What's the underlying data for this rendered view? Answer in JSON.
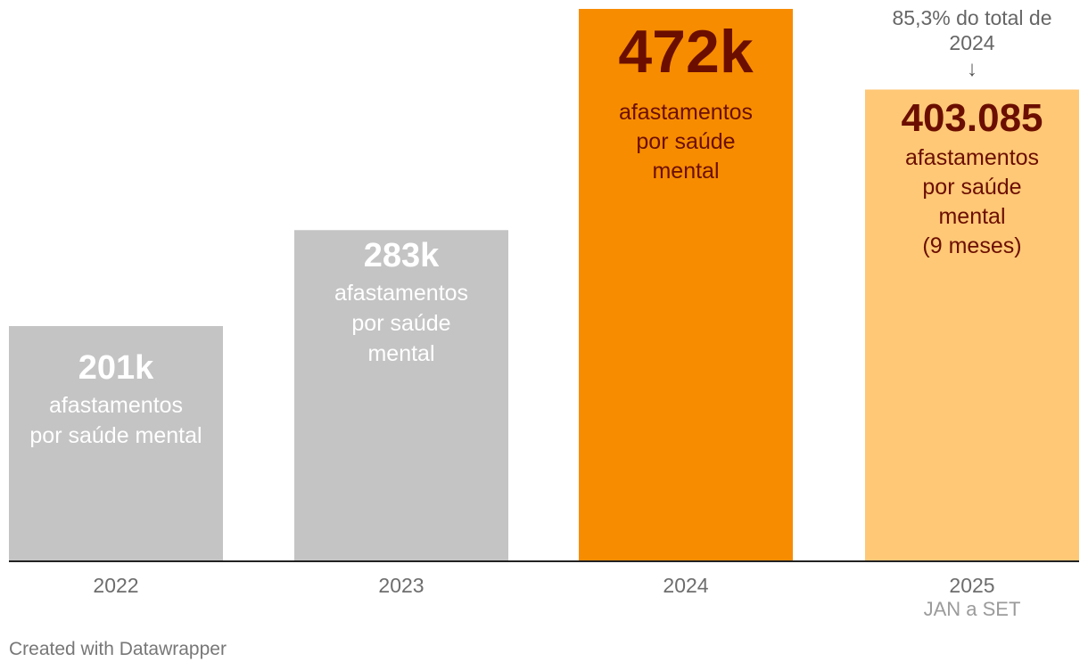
{
  "chart_data": {
    "type": "bar",
    "categories": [
      "2022",
      "2023",
      "2024",
      "2025"
    ],
    "category_sublabels": [
      "",
      "",
      "",
      "JAN a SET"
    ],
    "values": [
      201000,
      283000,
      472000,
      403085
    ],
    "value_labels": [
      "201k",
      "283k",
      "472k",
      "403.085"
    ],
    "bar_labels": [
      "afastamentos\npor saúde mental",
      "afastamentos\npor saúde\nmental",
      "afastamentos\npor saúde\nmental",
      "afastamentos\npor saúde\nmental\n(9 meses)"
    ],
    "bar_colors": [
      "#c4c4c4",
      "#c4c4c4",
      "#f78c00",
      "#fec876"
    ],
    "label_colors": [
      "#ffffff",
      "#ffffff",
      "#6b0e00",
      "#6b0e00"
    ],
    "annotations": [
      {
        "category": "2025",
        "text": "85,3% do total de\n2024",
        "arrow": "↓"
      }
    ],
    "ylim": [
      0,
      472000
    ],
    "grid": false,
    "legend": "none",
    "title": "",
    "xlabel": "",
    "ylabel": ""
  },
  "footer": {
    "credit": "Created with Datawrapper"
  }
}
